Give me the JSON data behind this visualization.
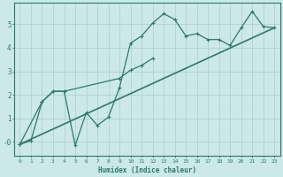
{
  "title": "",
  "xlabel": "Humidex (Indice chaleur)",
  "ylabel": "",
  "bg_color": "#cce8e8",
  "line_color": "#2a7a6a",
  "grid_color": "#aecece",
  "axis_color": "#2a7a6a",
  "xlim": [
    -0.5,
    23.5
  ],
  "ylim": [
    -0.6,
    5.9
  ],
  "xticks": [
    0,
    1,
    2,
    3,
    4,
    5,
    6,
    7,
    8,
    9,
    10,
    11,
    12,
    13,
    14,
    15,
    16,
    17,
    18,
    19,
    20,
    21,
    22,
    23
  ],
  "yticks": [
    0,
    1,
    2,
    3,
    4,
    5
  ],
  "ytick_labels": [
    "-0",
    "1",
    "2",
    "3",
    "4",
    "5"
  ],
  "series1_x": [
    0,
    1,
    2,
    3,
    4,
    5,
    6,
    7,
    8,
    9,
    10,
    11,
    12,
    13,
    14,
    15,
    16,
    17,
    18,
    19,
    20,
    21,
    22,
    23
  ],
  "series1_y": [
    -0.1,
    0.05,
    1.7,
    2.15,
    2.15,
    -0.15,
    1.25,
    0.7,
    1.05,
    2.3,
    4.2,
    4.5,
    5.05,
    5.45,
    5.2,
    4.5,
    4.6,
    4.35,
    4.35,
    4.1,
    4.85,
    5.55,
    4.9,
    4.85
  ],
  "series2_x": [
    0,
    2,
    3,
    4,
    9,
    10,
    11,
    12
  ],
  "series2_y": [
    -0.1,
    1.7,
    2.15,
    2.15,
    2.7,
    3.05,
    3.25,
    3.55
  ],
  "trend_x": [
    0,
    23
  ],
  "trend_y": [
    -0.1,
    4.85
  ],
  "markersize": 2.5,
  "linewidth": 0.9,
  "trend_linewidth": 1.2
}
